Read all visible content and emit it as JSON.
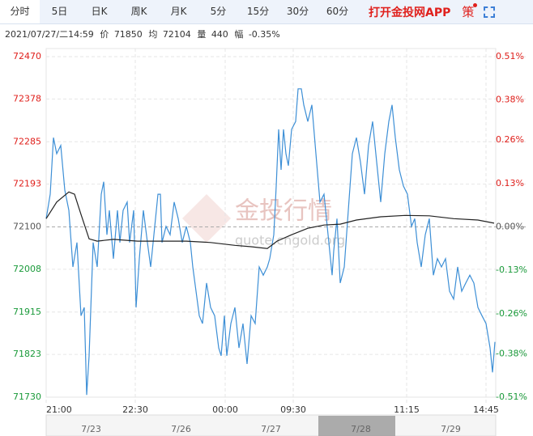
{
  "toolbar": {
    "tabs": [
      "分时",
      "5日",
      "日K",
      "周K",
      "月K",
      "5分",
      "15分",
      "30分",
      "60分"
    ],
    "app_link": "打开金投网APP",
    "strategy": "策"
  },
  "info": {
    "time": "2021/07/27/二14:59",
    "price_label": "价",
    "price": "71850",
    "avg_label": "均",
    "avg": "72104",
    "volume_label": "量",
    "volume": "440",
    "change_label": "幅",
    "change": "-0.35%"
  },
  "chart_data": {
    "type": "line",
    "watermark": [
      "金投行情",
      "quote.cngold.org"
    ],
    "xlim": [
      0,
      555
    ],
    "xticks": [
      {
        "value": 0,
        "label": "21:00"
      },
      {
        "value": 110,
        "label": "22:30"
      },
      {
        "value": 221,
        "label": "00:00"
      },
      {
        "value": 305,
        "label": "09:30"
      },
      {
        "value": 445,
        "label": "11:15"
      },
      {
        "value": 543,
        "label": "14:45"
      }
    ],
    "ylim": [
      71730,
      72470
    ],
    "yticks": [
      72470,
      72378,
      72285,
      72193,
      72100,
      72008,
      71915,
      71823,
      71730
    ],
    "y2lim": [
      -0.51,
      0.51
    ],
    "y2ticks": [
      {
        "value": 0.51,
        "label": "0.51%"
      },
      {
        "value": 0.38,
        "label": "0.38%"
      },
      {
        "value": 0.26,
        "label": "0.26%"
      },
      {
        "value": 0.13,
        "label": "0.13%"
      },
      {
        "value": 0,
        "label": "0.00%"
      },
      {
        "value": -0.13,
        "label": "-0.13%"
      },
      {
        "value": -0.26,
        "label": "-0.26%"
      },
      {
        "value": -0.38,
        "label": "-0.38%"
      },
      {
        "value": -0.51,
        "label": "-0.51%"
      }
    ],
    "grid": true,
    "series": [
      {
        "color": "#3d8fd6",
        "x": [
          0,
          5,
          9,
          13,
          18,
          23,
          28,
          33,
          38,
          43,
          47,
          50,
          53,
          58,
          63,
          68,
          71,
          75,
          78,
          83,
          88,
          91,
          95,
          100,
          103,
          108,
          111,
          115,
          120,
          125,
          129,
          133,
          138,
          141,
          143,
          148,
          153,
          158,
          163,
          168,
          173,
          178,
          181,
          185,
          189,
          193,
          198,
          203,
          208,
          213,
          216,
          220,
          223,
          228,
          233,
          238,
          243,
          248,
          253,
          258,
          263,
          268,
          273,
          276,
          281,
          284,
          287,
          290,
          293,
          296,
          299,
          303,
          308,
          311,
          315,
          318,
          323,
          328,
          333,
          338,
          343,
          348,
          353,
          355,
          359,
          363,
          368,
          373,
          378,
          383,
          388,
          393,
          398,
          403,
          408,
          413,
          418,
          423,
          427,
          431,
          436,
          441,
          446,
          451,
          455,
          458,
          463,
          468,
          473,
          478,
          483,
          488,
          493,
          498,
          503,
          508,
          513,
          518,
          523,
          528,
          533,
          538,
          543,
          548,
          551,
          554
        ],
        "values": [
          72118,
          72171,
          72294,
          72259,
          72277,
          72180,
          72136,
          72013,
          72066,
          71907,
          71925,
          71735,
          71820,
          72066,
          72013,
          72171,
          72198,
          72083,
          72136,
          72031,
          72136,
          72066,
          72136,
          72154,
          72066,
          72136,
          71925,
          72031,
          72136,
          72066,
          72013,
          72083,
          72171,
          72171,
          72066,
          72101,
          72083,
          72154,
          72118,
          72066,
          72101,
          72066,
          72013,
          71960,
          71907,
          71890,
          71978,
          71925,
          71907,
          71837,
          71820,
          71907,
          71820,
          71890,
          71925,
          71837,
          71890,
          71802,
          71907,
          71890,
          72013,
          71995,
          72013,
          72031,
          72083,
          72189,
          72312,
          72224,
          72312,
          72259,
          72233,
          72312,
          72329,
          72400,
          72400,
          72365,
          72329,
          72365,
          72259,
          72154,
          72171,
          72083,
          71995,
          72048,
          72118,
          71978,
          72013,
          72136,
          72259,
          72294,
          72241,
          72171,
          72277,
          72329,
          72241,
          72154,
          72259,
          72329,
          72365,
          72294,
          72224,
          72189,
          72171,
          72101,
          72118,
          72066,
          72013,
          72083,
          72118,
          71995,
          72031,
          72013,
          72031,
          71960,
          71943,
          72013,
          71960,
          71978,
          71995,
          71978,
          71925,
          71907,
          71890,
          71837,
          71784,
          71850
        ]
      },
      {
        "color": "#222222",
        "x": [
          0,
          13,
          28,
          35,
          43,
          53,
          63,
          83,
          113,
          143,
          173,
          203,
          233,
          253,
          273,
          285,
          303,
          323,
          343,
          363,
          383,
          413,
          443,
          473,
          503,
          533,
          553
        ],
        "values": [
          72118,
          72154,
          72176,
          72171,
          72127,
          72074,
          72069,
          72073,
          72069,
          72069,
          72069,
          72066,
          72060,
          72057,
          72053,
          72069,
          72083,
          72097,
          72104,
          72106,
          72115,
          72122,
          72125,
          72124,
          72118,
          72115,
          72108
        ]
      }
    ]
  },
  "navigator": {
    "dates": [
      "7/23",
      "7/26",
      "7/27",
      "7/28",
      "7/29"
    ]
  }
}
